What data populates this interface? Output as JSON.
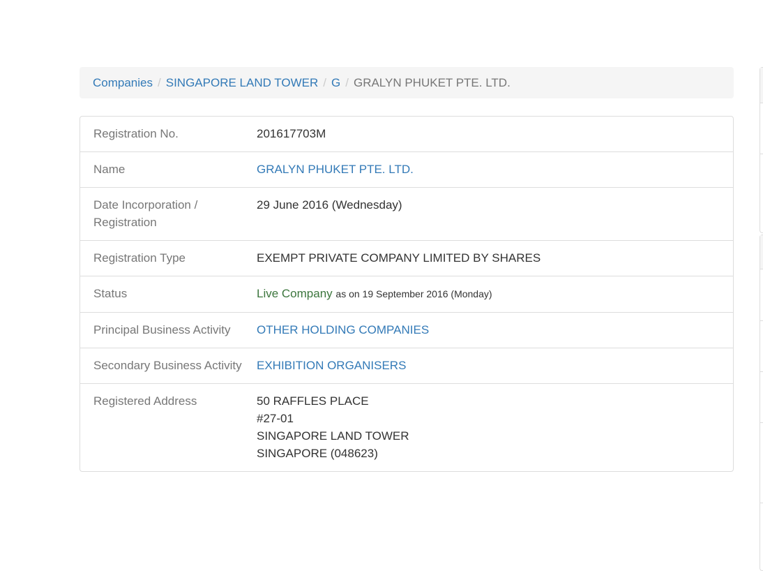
{
  "breadcrumb": [
    {
      "label": "Companies"
    },
    {
      "label": "SINGAPORE LAND TOWER"
    },
    {
      "label": "G"
    }
  ],
  "breadcrumb_current": "GRALYN PHUKET PTE. LTD.",
  "details": {
    "registration_no": {
      "label": "Registration No.",
      "value": "201617703M"
    },
    "name": {
      "label": "Name",
      "value": "GRALYN PHUKET PTE. LTD."
    },
    "date": {
      "label": "Date Incorporation / Registration",
      "value": "29 June 2016",
      "day": "(Wednesday)"
    },
    "type": {
      "label": "Registration Type",
      "value": "EXEMPT PRIVATE COMPANY LIMITED BY SHARES"
    },
    "status": {
      "label": "Status",
      "value": "Live Company",
      "as_on": "as on 19 September 2016 (Monday)"
    },
    "principal": {
      "label": "Principal Business Activity",
      "value": "OTHER HOLDING COMPANIES"
    },
    "secondary": {
      "label": "Secondary Business Activity",
      "value": "EXHIBITION ORGANISERS"
    },
    "address": {
      "label": "Registered Address",
      "lines": [
        "50 RAFFLES PLACE",
        "#27-01",
        "SINGAPORE LAND TOWER",
        "SINGAPORE (048623)"
      ]
    }
  },
  "colors": {
    "link": "#337ab7",
    "status_live": "#3c763d",
    "label": "#777777"
  }
}
